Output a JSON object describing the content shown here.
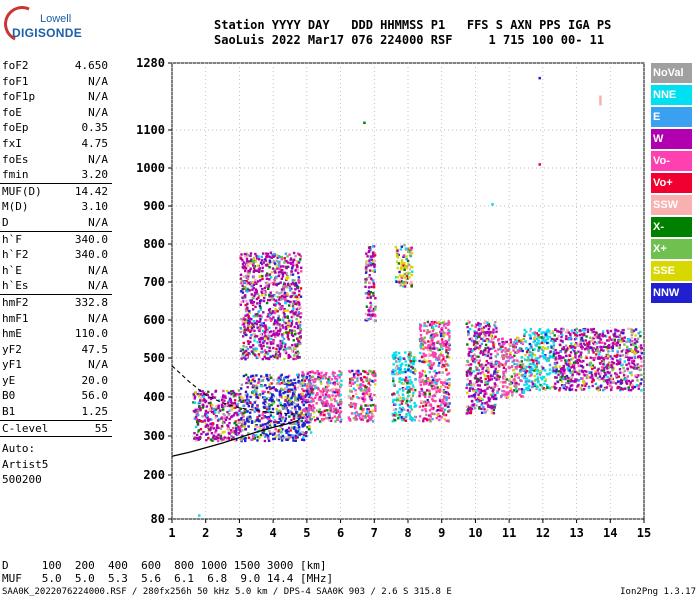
{
  "logo": {
    "line1": "Lowell",
    "line2": "DIGISONDE"
  },
  "header": {
    "line1": "Station YYYY DAY   DDD HHMMSS P1   FFS S AXN PPS IGA PS",
    "line2": "SaoLuis 2022 Mar17 076 224000 RSF     1 715 100 00- 11"
  },
  "params": {
    "g1": [
      {
        "name": "foF2",
        "value": "4.650"
      },
      {
        "name": "foF1",
        "value": "N/A"
      },
      {
        "name": "foF1p",
        "value": "N/A"
      },
      {
        "name": "foE",
        "value": "N/A"
      },
      {
        "name": "foEp",
        "value": "0.35"
      },
      {
        "name": "fxI",
        "value": "4.75"
      },
      {
        "name": "foEs",
        "value": "N/A"
      },
      {
        "name": "fmin",
        "value": "3.20"
      }
    ],
    "g2": [
      {
        "name": "MUF(D)",
        "value": "14.42"
      },
      {
        "name": "M(D)",
        "value": "3.10"
      },
      {
        "name": "D",
        "value": "N/A"
      }
    ],
    "g3": [
      {
        "name": "h`F",
        "value": "340.0"
      },
      {
        "name": "h`F2",
        "value": "340.0"
      },
      {
        "name": "h`E",
        "value": "N/A"
      },
      {
        "name": "h`Es",
        "value": "N/A"
      }
    ],
    "g4": [
      {
        "name": "hmF2",
        "value": "332.8"
      },
      {
        "name": "hmF1",
        "value": "N/A"
      },
      {
        "name": "hmE",
        "value": "110.0"
      },
      {
        "name": "yF2",
        "value": "47.5"
      },
      {
        "name": "yF1",
        "value": "N/A"
      },
      {
        "name": "yE",
        "value": "20.0"
      },
      {
        "name": "B0",
        "value": "56.0"
      },
      {
        "name": "B1",
        "value": "1.25"
      }
    ],
    "clevel": {
      "name": "C-level",
      "value": "55"
    },
    "auto": [
      "Auto:",
      "Artist5",
      "500200"
    ]
  },
  "legend": [
    {
      "label": "NoVal",
      "color": "#a0a0a0"
    },
    {
      "label": "NNE",
      "color": "#00e0f0"
    },
    {
      "label": "E",
      "color": "#3aa0f0"
    },
    {
      "label": "W",
      "color": "#b000b0"
    },
    {
      "label": "Vo-",
      "color": "#ff40b0"
    },
    {
      "label": "Vo+",
      "color": "#f00030"
    },
    {
      "label": "SSW",
      "color": "#f8b0b0"
    },
    {
      "label": "X-",
      "color": "#008000"
    },
    {
      "label": "X+",
      "color": "#70c050"
    },
    {
      "label": "SSE",
      "color": "#d8d800"
    },
    {
      "label": "NNW",
      "color": "#2020d0"
    }
  ],
  "dmuf": {
    "line1": "D     100  200  400  600  800 1000 1500 3000 [km]",
    "line2": "MUF   5.0  5.0  5.3  5.6  6.1  6.8  9.0 14.4 [MHz]"
  },
  "footer": "SAA0K_2022076224000.RSF / 280fx256h 50 kHz 5.0 km / DPS-4 SAA0K 903 / 2.6 S 315.8 E",
  "version": "Ion2Png 1.3.17",
  "chart_data": {
    "type": "scatter",
    "x_ticks": [
      "1",
      "2",
      "3",
      "4",
      "5",
      "6",
      "7",
      "8",
      "9",
      "10",
      "11",
      "12",
      "13",
      "14",
      "15"
    ],
    "y_ticks": [
      "80",
      "200",
      "300",
      "400",
      "500",
      "600",
      "700",
      "800",
      "900",
      "1000",
      "1100",
      "1280"
    ],
    "xlim": [
      1,
      15
    ],
    "ylim": [
      80,
      1280
    ],
    "grid": true,
    "clusters": [
      {
        "x": [
          1.6,
          3.0
        ],
        "y": [
          290,
          420
        ],
        "dominant": "W"
      },
      {
        "x": [
          3.0,
          5.1
        ],
        "y": [
          290,
          460
        ],
        "dominant": "NNW"
      },
      {
        "x": [
          3.0,
          4.8
        ],
        "y": [
          500,
          780
        ],
        "dominant": "W"
      },
      {
        "x": [
          4.8,
          6.0
        ],
        "y": [
          340,
          470
        ],
        "dominant": "Vo-"
      },
      {
        "x": [
          6.2,
          7.0
        ],
        "y": [
          340,
          470
        ],
        "dominant": "Vo-"
      },
      {
        "x": [
          6.7,
          7.0
        ],
        "y": [
          600,
          800
        ],
        "dominant": "W"
      },
      {
        "x": [
          7.5,
          8.2
        ],
        "y": [
          340,
          520
        ],
        "dominant": "NNE"
      },
      {
        "x": [
          7.6,
          8.1
        ],
        "y": [
          690,
          800
        ],
        "dominant": "SSE"
      },
      {
        "x": [
          8.3,
          9.2
        ],
        "y": [
          340,
          600
        ],
        "dominant": "Vo-"
      },
      {
        "x": [
          9.7,
          10.6
        ],
        "y": [
          360,
          600
        ],
        "dominant": "W"
      },
      {
        "x": [
          10.6,
          11.4
        ],
        "y": [
          400,
          560
        ],
        "dominant": "Vo-"
      },
      {
        "x": [
          11.4,
          12.3
        ],
        "y": [
          420,
          580
        ],
        "dominant": "NNE"
      },
      {
        "x": [
          12.3,
          14.9
        ],
        "y": [
          420,
          580
        ],
        "dominant": "W"
      }
    ],
    "outliers": [
      {
        "x": 11.9,
        "y": 1240,
        "series": "NNW"
      },
      {
        "x": 13.7,
        "y": 1190,
        "series": "SSW"
      },
      {
        "x": 11.9,
        "y": 1010,
        "series": "Vo+"
      },
      {
        "x": 6.7,
        "y": 1120,
        "series": "X-"
      },
      {
        "x": 10.5,
        "y": 905,
        "series": "NNE"
      },
      {
        "x": 1.8,
        "y": 90,
        "series": "NNE"
      }
    ],
    "profile_curve": [
      [
        1,
        248
      ],
      [
        1.5,
        258
      ],
      [
        2,
        270
      ],
      [
        2.5,
        282
      ],
      [
        3,
        296
      ],
      [
        3.5,
        310
      ],
      [
        4,
        322
      ],
      [
        4.5,
        333
      ],
      [
        4.75,
        340
      ]
    ],
    "profile_dashed": [
      [
        1,
        480
      ],
      [
        1.5,
        440
      ],
      [
        2,
        405
      ],
      [
        2.5,
        385
      ],
      [
        3,
        372
      ],
      [
        3.5,
        365
      ],
      [
        4,
        360
      ],
      [
        4.7,
        356
      ]
    ]
  }
}
